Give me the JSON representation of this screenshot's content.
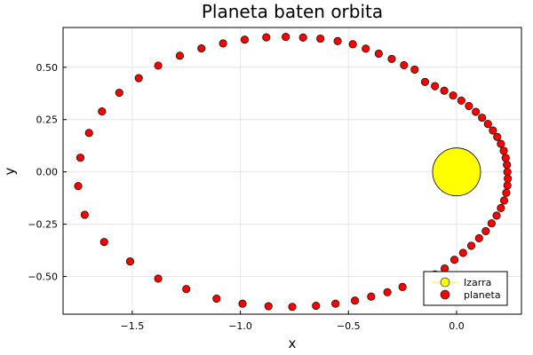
{
  "chart_data": {
    "type": "scatter",
    "title": "Planeta baten orbita",
    "xlabel": "x",
    "ylabel": "y",
    "xlim": [
      -1.82,
      0.3
    ],
    "ylim": [
      -0.68,
      0.69
    ],
    "xticks": [
      -1.5,
      -1.0,
      -0.5,
      0.0
    ],
    "xtick_labels": [
      "−1.5",
      "−1.0",
      "−0.5",
      "0.0"
    ],
    "yticks": [
      -0.5,
      -0.25,
      0.0,
      0.25,
      0.5
    ],
    "ytick_labels": [
      "−0.50",
      "−0.25",
      "0.00",
      "0.25",
      "0.50"
    ],
    "grid": true,
    "legend_position": "bottom-right",
    "series": [
      {
        "name": "Izarra",
        "color": "#ffff00",
        "marker": "large-circle",
        "points": [
          {
            "x": 0.0,
            "y": 0.0
          }
        ]
      },
      {
        "name": "planeta",
        "color": "#ff0000",
        "marker": "circle",
        "points": [
          {
            "x": 0.235,
            "y": 0.0
          },
          {
            "x": 0.233,
            "y": 0.034
          },
          {
            "x": 0.227,
            "y": 0.067
          },
          {
            "x": 0.218,
            "y": 0.101
          },
          {
            "x": 0.205,
            "y": 0.134
          },
          {
            "x": 0.188,
            "y": 0.167
          },
          {
            "x": 0.168,
            "y": 0.198
          },
          {
            "x": 0.145,
            "y": 0.229
          },
          {
            "x": 0.118,
            "y": 0.259
          },
          {
            "x": 0.089,
            "y": 0.287
          },
          {
            "x": 0.057,
            "y": 0.315
          },
          {
            "x": 0.022,
            "y": 0.341
          },
          {
            "x": -0.016,
            "y": 0.365
          },
          {
            "x": -0.057,
            "y": 0.388
          },
          {
            "x": -0.1,
            "y": 0.41
          },
          {
            "x": -0.146,
            "y": 0.43
          },
          {
            "x": -0.194,
            "y": 0.489
          },
          {
            "x": -0.243,
            "y": 0.51
          },
          {
            "x": -0.3,
            "y": 0.54
          },
          {
            "x": -0.36,
            "y": 0.565
          },
          {
            "x": -0.42,
            "y": 0.589
          },
          {
            "x": -0.48,
            "y": 0.61
          },
          {
            "x": -0.55,
            "y": 0.625
          },
          {
            "x": -0.63,
            "y": 0.637
          },
          {
            "x": -0.71,
            "y": 0.642
          },
          {
            "x": -0.79,
            "y": 0.645
          },
          {
            "x": -0.88,
            "y": 0.643
          },
          {
            "x": -0.98,
            "y": 0.632
          },
          {
            "x": -1.08,
            "y": 0.614
          },
          {
            "x": -1.18,
            "y": 0.59
          },
          {
            "x": -1.28,
            "y": 0.555
          },
          {
            "x": -1.38,
            "y": 0.508
          },
          {
            "x": -1.47,
            "y": 0.448
          },
          {
            "x": -1.56,
            "y": 0.378
          },
          {
            "x": -1.64,
            "y": 0.289
          },
          {
            "x": -1.7,
            "y": 0.186
          },
          {
            "x": -1.74,
            "y": 0.068
          },
          {
            "x": -1.75,
            "y": -0.068
          },
          {
            "x": -1.72,
            "y": -0.205
          },
          {
            "x": -1.63,
            "y": -0.335
          },
          {
            "x": -1.51,
            "y": -0.428
          },
          {
            "x": -1.38,
            "y": -0.51
          },
          {
            "x": -1.25,
            "y": -0.56
          },
          {
            "x": -1.11,
            "y": -0.606
          },
          {
            "x": -0.99,
            "y": -0.63
          },
          {
            "x": -0.87,
            "y": -0.642
          },
          {
            "x": -0.76,
            "y": -0.645
          },
          {
            "x": -0.65,
            "y": -0.64
          },
          {
            "x": -0.56,
            "y": -0.63
          },
          {
            "x": -0.47,
            "y": -0.615
          },
          {
            "x": -0.395,
            "y": -0.596
          },
          {
            "x": -0.32,
            "y": -0.575
          },
          {
            "x": -0.25,
            "y": -0.55
          },
          {
            "x": -0.1,
            "y": -0.49
          },
          {
            "x": -0.055,
            "y": -0.462
          },
          {
            "x": -0.01,
            "y": -0.42
          },
          {
            "x": 0.03,
            "y": -0.387
          },
          {
            "x": 0.068,
            "y": -0.353
          },
          {
            "x": 0.104,
            "y": -0.317
          },
          {
            "x": 0.135,
            "y": -0.283
          },
          {
            "x": 0.162,
            "y": -0.246
          },
          {
            "x": 0.185,
            "y": -0.209
          },
          {
            "x": 0.205,
            "y": -0.173
          },
          {
            "x": 0.22,
            "y": -0.137
          },
          {
            "x": 0.23,
            "y": -0.1
          },
          {
            "x": 0.235,
            "y": -0.065
          },
          {
            "x": 0.237,
            "y": -0.032
          }
        ]
      }
    ]
  }
}
